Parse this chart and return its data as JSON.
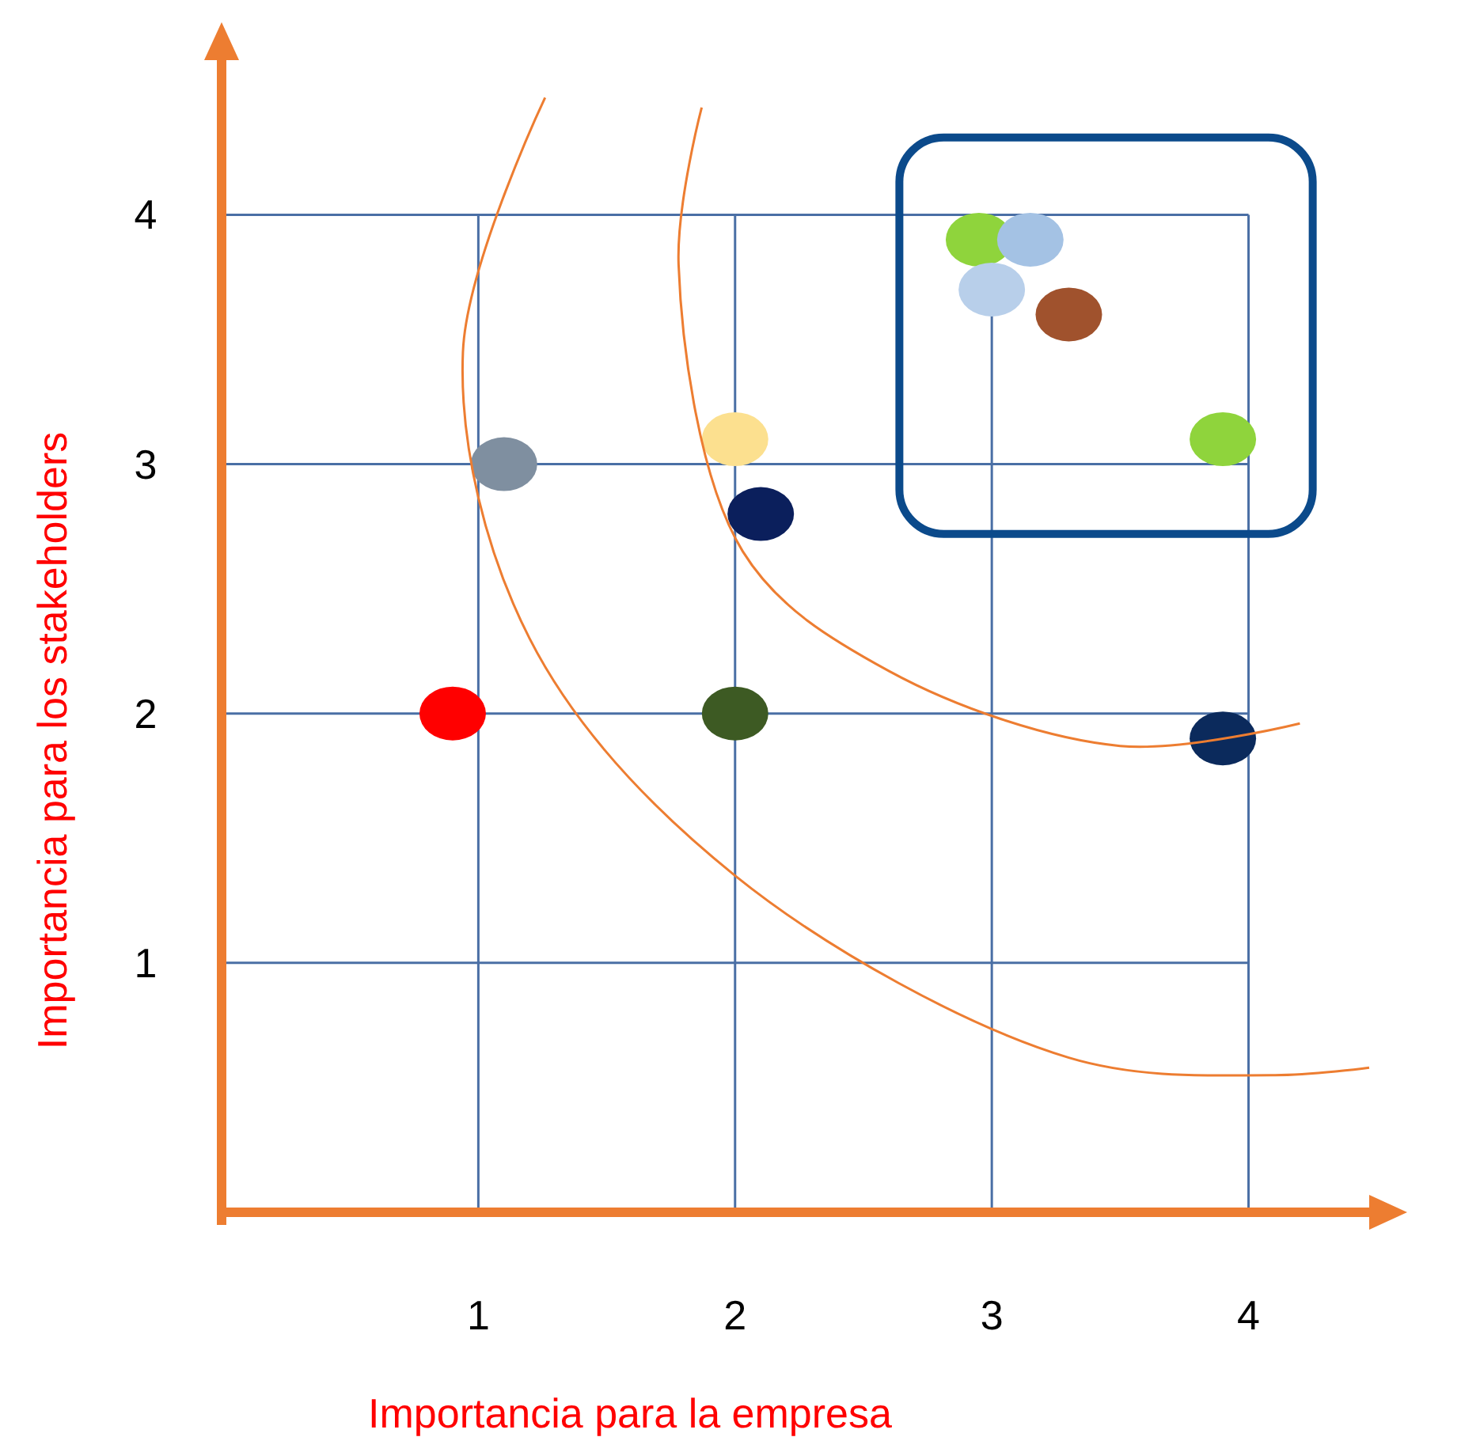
{
  "chart_data": {
    "type": "scatter",
    "xlabel": "Importancia para la empresa",
    "ylabel": "Importancia para los stakeholders",
    "xlim": [
      0,
      4.47
    ],
    "ylim": [
      0,
      4.62
    ],
    "xticks": [
      1,
      2,
      3,
      4
    ],
    "yticks": [
      1,
      2,
      3,
      4
    ],
    "grid": true,
    "marker": "circle",
    "series": [
      {
        "x": [
          2.95,
          3.15,
          3.0,
          3.3,
          3.9,
          1.1,
          2.0,
          2.1,
          0.9,
          2.0,
          3.9
        ],
        "values": [
          3.9,
          3.9,
          3.7,
          3.6,
          3.1,
          3.0,
          3.1,
          2.8,
          2.0,
          2.0,
          1.9
        ],
        "colors": [
          "#8fd43c",
          "#a4c2e4",
          "#b8cfea",
          "#a0522d",
          "#8fd43c",
          "#7f8fa0",
          "#fce08f",
          "#0b1f5c",
          "#ff0000",
          "#3d5a23",
          "#0b2a5c"
        ]
      },
      {
        "type": "line",
        "color": "#ed7d31",
        "marker": "none",
        "x": [
          1.26,
          0.94,
          1.2,
          2.0,
          3.3,
          4.1,
          4.47
        ],
        "values": [
          4.47,
          3.45,
          2.3,
          1.35,
          0.62,
          0.55,
          0.58
        ]
      },
      {
        "type": "line",
        "color": "#ed7d31",
        "marker": "none",
        "x": [
          1.87,
          1.78,
          2.03,
          2.6,
          3.5,
          4.2
        ],
        "values": [
          4.43,
          3.8,
          2.65,
          2.17,
          1.87,
          1.96
        ]
      }
    ]
  }
}
